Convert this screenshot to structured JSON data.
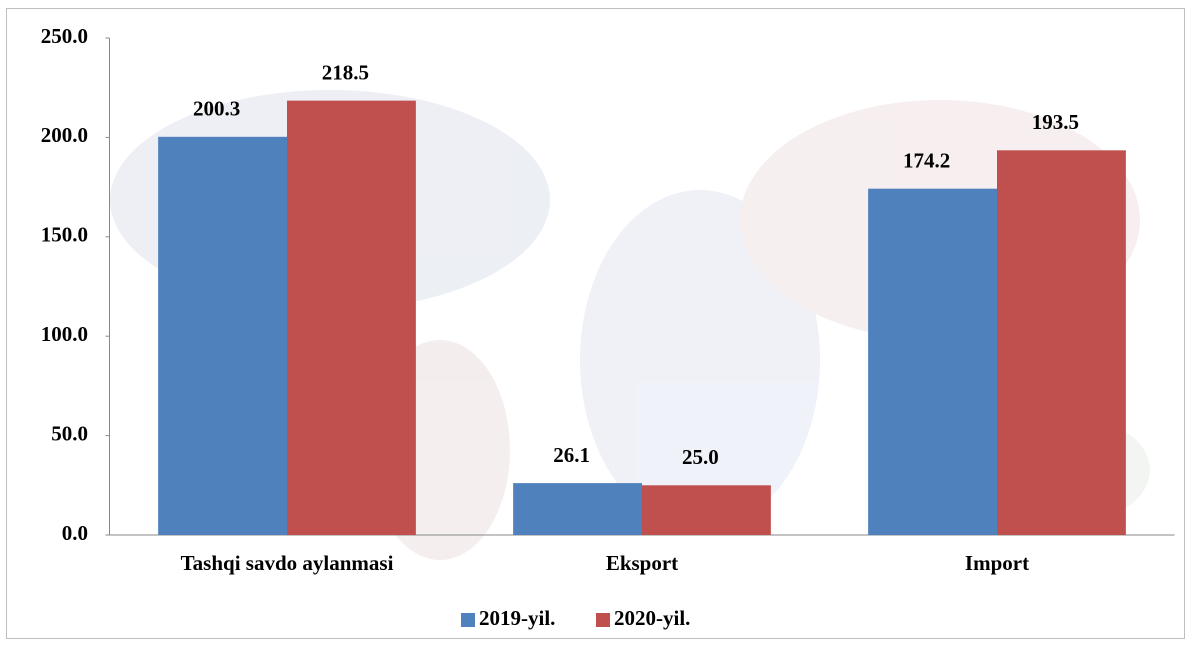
{
  "chart_data": {
    "type": "bar",
    "categories": [
      "Tashqi savdo aylanmasi",
      "Eksport",
      "Import"
    ],
    "series": [
      {
        "name": "2019-yil.",
        "color": "#4f81bd",
        "values": [
          200.3,
          26.1,
          174.2
        ],
        "value_labels": [
          "200.3",
          "26.1",
          "174.2"
        ]
      },
      {
        "name": "2020-yil.",
        "color": "#c0504d",
        "values": [
          218.5,
          25.0,
          193.5
        ],
        "value_labels": [
          "218.5",
          "25.0",
          "193.5"
        ]
      }
    ],
    "ylim": [
      0,
      250
    ],
    "yticks": [
      {
        "value": 0,
        "label": "0.0"
      },
      {
        "value": 50,
        "label": "50.0"
      },
      {
        "value": 100,
        "label": "100.0"
      },
      {
        "value": 150,
        "label": "150.0"
      },
      {
        "value": 200,
        "label": "200.0"
      },
      {
        "value": 250,
        "label": "250.0"
      }
    ],
    "grid": false,
    "legend": "bottom"
  }
}
